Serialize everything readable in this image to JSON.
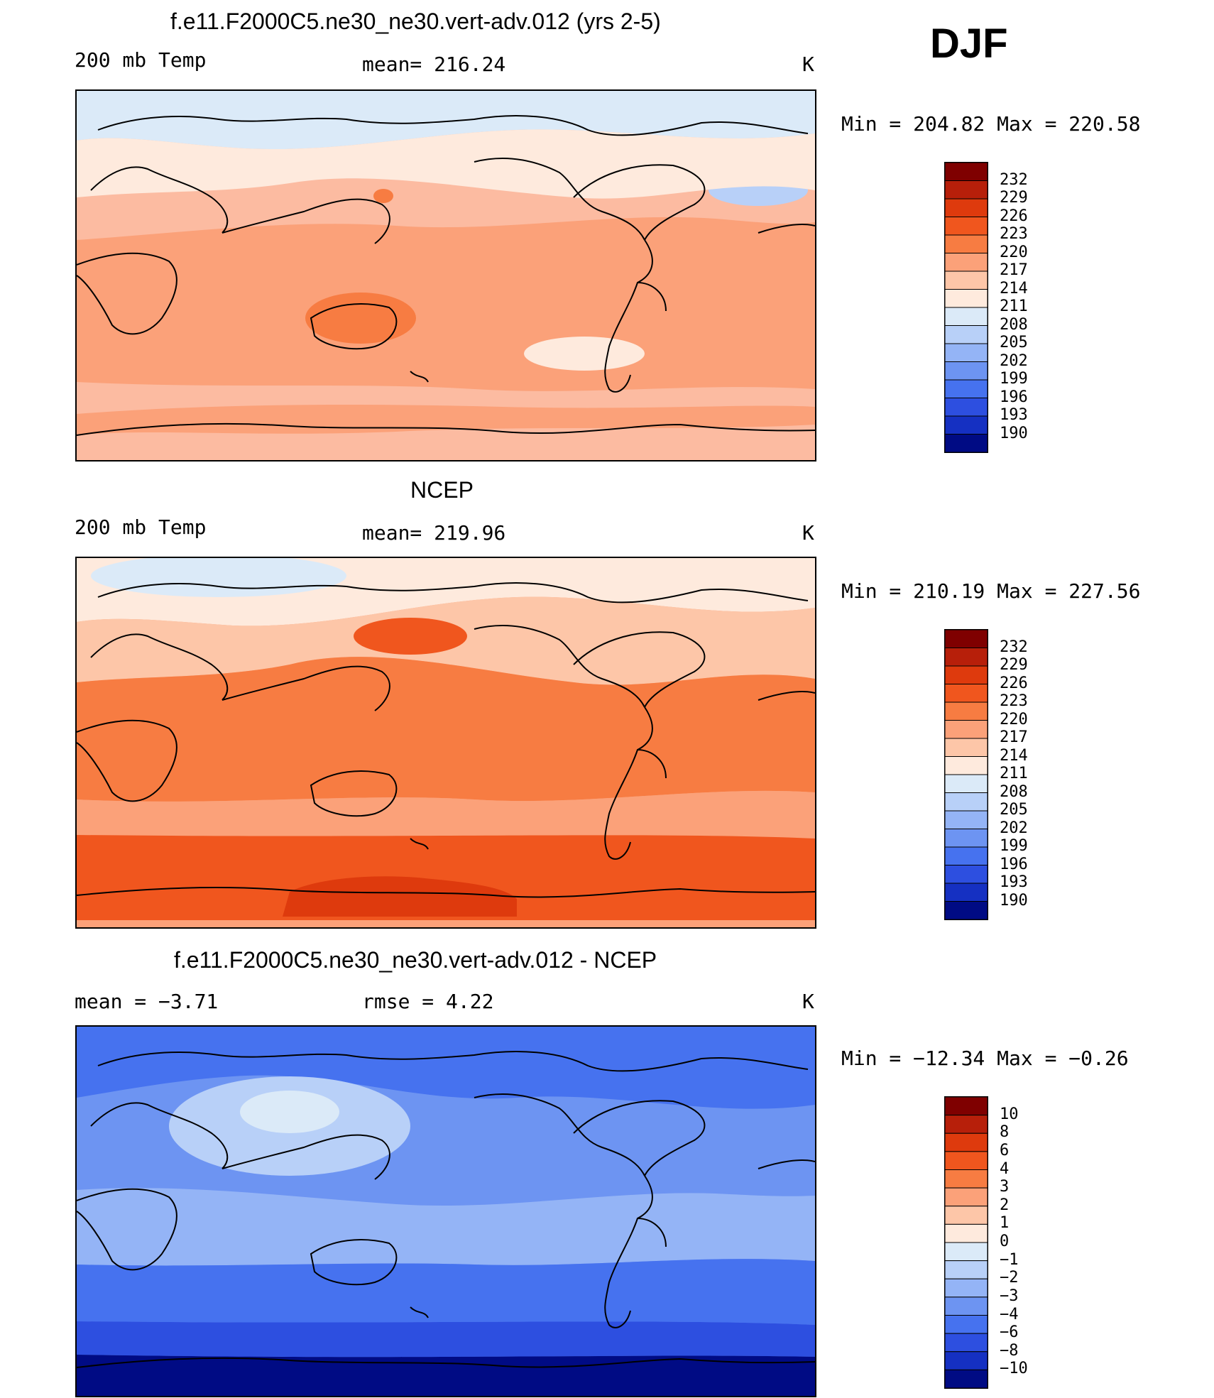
{
  "season": "DJF",
  "panels": [
    {
      "title": "f.e11.F2000C5.ne30_ne30.vert-adv.012 (yrs 2-5)",
      "left_label": "200 mb Temp",
      "center_label": "mean=  216.24",
      "units": "K",
      "minmax": "Min  =  204.82  Max  =  220.58",
      "base_color": "#fcbba1",
      "colorbar": {
        "labels": [
          "232",
          "229",
          "226",
          "223",
          "220",
          "217",
          "214",
          "211",
          "208",
          "205",
          "202",
          "199",
          "196",
          "193",
          "190"
        ],
        "colors": [
          "#7f0000",
          "#b71f0a",
          "#de3a0d",
          "#f0561e",
          "#f77c42",
          "#fba179",
          "#fdc6a8",
          "#feeadd",
          "#dbeaf8",
          "#b8d0f8",
          "#94b4f6",
          "#6d94f2",
          "#4672ef",
          "#2d4fe0",
          "#1530c2",
          "#000b84"
        ]
      },
      "regions": [
        {
          "name": "polar-north-band",
          "color": "#dbeaf8"
        },
        {
          "name": "north-cool-spot",
          "color": "#b8d0f8"
        },
        {
          "name": "midlat-north-band",
          "color": "#feeadd"
        },
        {
          "name": "tropics-band",
          "color": "#fba179"
        },
        {
          "name": "australia-warm-spot",
          "color": "#f77c42"
        },
        {
          "name": "japan-warm-spot",
          "color": "#f77c42"
        },
        {
          "name": "south-pacific-pale-spot",
          "color": "#feeadd"
        },
        {
          "name": "southern-ocean-band",
          "color": "#fba179"
        }
      ]
    },
    {
      "title": "NCEP",
      "left_label": "200 mb Temp",
      "center_label": "mean=  219.96",
      "units": "K",
      "minmax": "Min  =  210.19  Max  =  227.56",
      "base_color": "#fba179",
      "colorbar": {
        "labels": [
          "232",
          "229",
          "226",
          "223",
          "220",
          "217",
          "214",
          "211",
          "208",
          "205",
          "202",
          "199",
          "196",
          "193",
          "190"
        ],
        "colors": [
          "#7f0000",
          "#b71f0a",
          "#de3a0d",
          "#f0561e",
          "#f77c42",
          "#fba179",
          "#fdc6a8",
          "#feeadd",
          "#dbeaf8",
          "#b8d0f8",
          "#94b4f6",
          "#6d94f2",
          "#4672ef",
          "#2d4fe0",
          "#1530c2",
          "#000b84"
        ]
      },
      "regions": [
        {
          "name": "polar-north-band",
          "color": "#feeadd"
        },
        {
          "name": "arctic-cool-spot",
          "color": "#dbeaf8"
        },
        {
          "name": "midlat-north-band",
          "color": "#fdc6a8"
        },
        {
          "name": "tropics-band",
          "color": "#f77c42"
        },
        {
          "name": "north-pacific-warm-spot",
          "color": "#f0561e"
        },
        {
          "name": "south-midlat-band",
          "color": "#fba179"
        },
        {
          "name": "southern-ocean-band",
          "color": "#f0561e"
        },
        {
          "name": "antarctic-warm-spot",
          "color": "#de3a0d"
        }
      ]
    },
    {
      "title": "f.e11.F2000C5.ne30_ne30.vert-adv.012 - NCEP",
      "left_label": "mean =    −3.71",
      "center_label": "rmse =     4.22",
      "units": "K",
      "minmax": "Min  =  −12.34  Max  =   −0.26",
      "base_color": "#6d94f2",
      "colorbar": {
        "labels": [
          "10",
          "8",
          "6",
          "4",
          "3",
          "2",
          "1",
          "0",
          "−1",
          "−2",
          "−3",
          "−4",
          "−6",
          "−8",
          "−10"
        ],
        "colors": [
          "#7f0000",
          "#b71f0a",
          "#de3a0d",
          "#f0561e",
          "#f77c42",
          "#fba179",
          "#fdc6a8",
          "#feeadd",
          "#dbeaf8",
          "#b8d0f8",
          "#94b4f6",
          "#6d94f2",
          "#4672ef",
          "#2d4fe0",
          "#1530c2",
          "#000b84"
        ]
      },
      "regions": [
        {
          "name": "north-band",
          "color": "#4672ef"
        },
        {
          "name": "asia-light-spot",
          "color": "#b8d0f8"
        },
        {
          "name": "asia-pale-spot",
          "color": "#dbeaf8"
        },
        {
          "name": "tropics-band",
          "color": "#94b4f6"
        },
        {
          "name": "south-midlat-band",
          "color": "#4672ef"
        },
        {
          "name": "southern-ocean-band",
          "color": "#2d4fe0"
        },
        {
          "name": "antarctic-band",
          "color": "#000b84"
        }
      ]
    }
  ]
}
